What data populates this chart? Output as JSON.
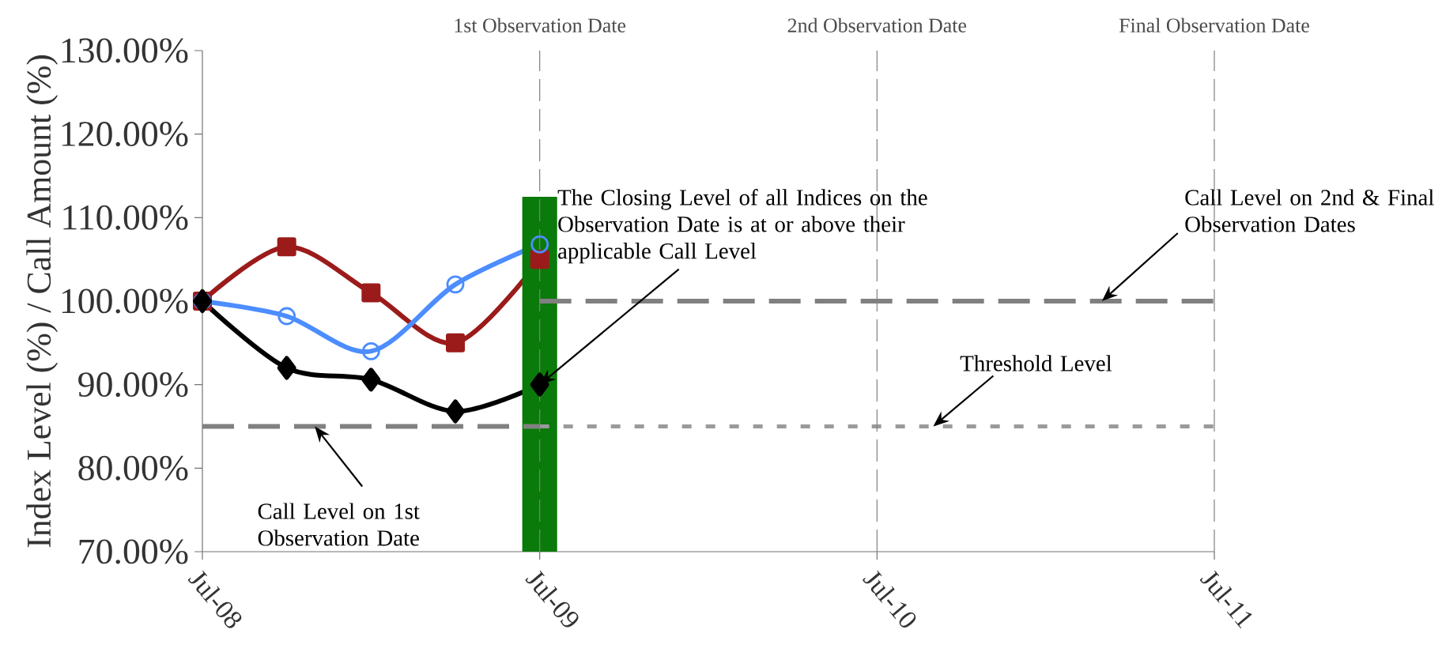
{
  "chart_data": {
    "type": "line",
    "ylabel": "Index Level (%) / Call Amount (%)",
    "xlim": [
      "2008-07",
      "2011-07"
    ],
    "xticks": [
      {
        "value": "2008-07",
        "label": "Jul-08"
      },
      {
        "value": "2009-07",
        "label": "Jul-09"
      },
      {
        "value": "2010-07",
        "label": "Jul-10"
      },
      {
        "value": "2011-07",
        "label": "Jul-11"
      }
    ],
    "ylim": [
      70,
      130
    ],
    "yticks": [
      {
        "value": 70,
        "label": "70.00%"
      },
      {
        "value": 80,
        "label": "80.00%"
      },
      {
        "value": 90,
        "label": "90.00%"
      },
      {
        "value": 100,
        "label": "100.00%"
      },
      {
        "value": 110,
        "label": "110.00%"
      },
      {
        "value": 120,
        "label": "120.00%"
      },
      {
        "value": 130,
        "label": "130.00%"
      }
    ],
    "series": [
      {
        "color": "#9b1b1b",
        "marker": "square",
        "x": [
          "2008-07",
          "2008-10",
          "2009-01",
          "2009-04",
          "2009-07"
        ],
        "values": [
          100,
          106.5,
          101,
          95,
          105
        ]
      },
      {
        "color": "#4c8dff",
        "marker": "circle",
        "x": [
          "2008-07",
          "2008-10",
          "2009-01",
          "2009-04",
          "2009-07"
        ],
        "values": [
          100,
          98.2,
          94,
          102,
          106.8
        ]
      },
      {
        "color": "#000000",
        "marker": "diamond",
        "x": [
          "2008-07",
          "2008-10",
          "2009-01",
          "2009-04",
          "2009-07"
        ],
        "values": [
          100,
          92,
          90.6,
          86.8,
          90
        ]
      },
      {
        "type": "bar",
        "color": "#0a7a0a",
        "x": [
          "2009-07"
        ],
        "values": [
          112.5
        ]
      },
      {
        "type": "line",
        "color": "#808080",
        "line_style": "dashed",
        "marker": "none",
        "x": [
          "2008-07",
          "2009-07"
        ],
        "values": [
          85,
          85
        ]
      },
      {
        "type": "line",
        "color": "#808080",
        "line_style": "dashed",
        "marker": "none",
        "x": [
          "2009-07",
          "2011-07"
        ],
        "values": [
          100,
          100
        ]
      },
      {
        "type": "line",
        "color": "#9a9a9a",
        "line_style": "dotted",
        "marker": "none",
        "x": [
          "2009-07",
          "2011-07"
        ],
        "values": [
          85,
          85
        ]
      }
    ],
    "ref_lines": [
      {
        "axis": "x",
        "value": "2009-07",
        "label": "1st Observation Date",
        "color": "#808080",
        "line_style": "dashed"
      },
      {
        "axis": "x",
        "value": "2010-07",
        "label": "2nd Observation Date",
        "color": "#808080",
        "line_style": "dashed"
      },
      {
        "axis": "x",
        "value": "2011-07",
        "label": "Final Observation Date",
        "color": "#808080",
        "line_style": "dashed"
      }
    ],
    "annotations": [
      {
        "text": "The Closing Level of all Indices on the Observation Date is at or above their applicable Call Level",
        "x": "2009-07",
        "y": 90
      },
      {
        "text": "Call Level on 2nd & Final Observation Dates",
        "x": "2011-03",
        "y": 100
      },
      {
        "text": "Threshold Level",
        "x": "2010-09",
        "y": 85
      },
      {
        "text": "Call Level on 1st Observation Date",
        "x": "2008-11",
        "y": 85
      }
    ]
  }
}
